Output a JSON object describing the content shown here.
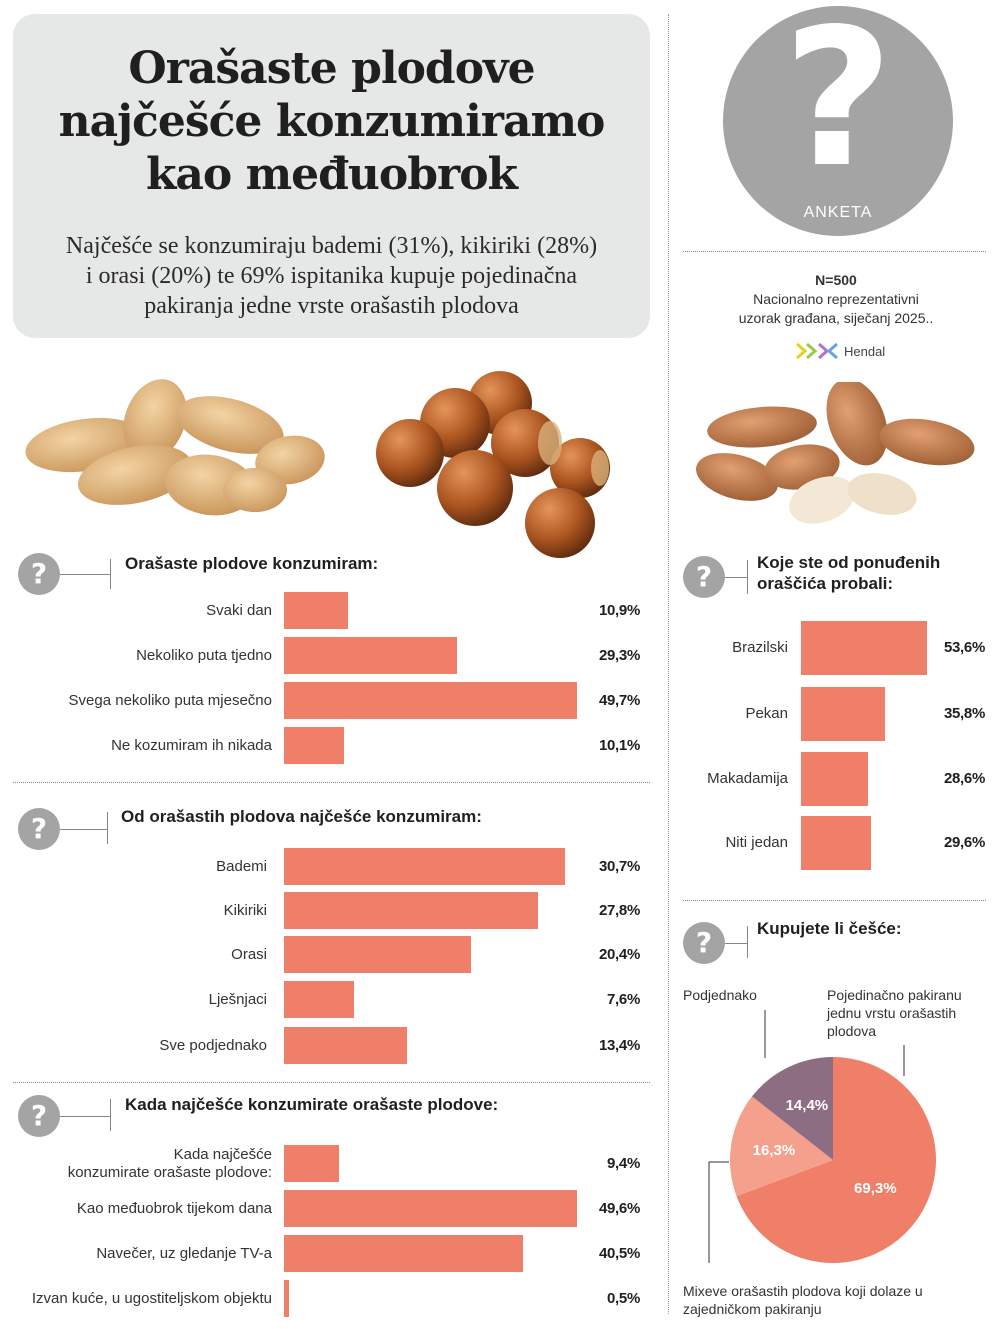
{
  "header": {
    "title_lines": [
      "Orašaste plodove",
      "najčešće  konzumiramo",
      "kao međuobrok"
    ],
    "subtitle_lines": [
      "Najčešće se konzumiraju bademi (31%), kikiriki (28%)",
      "i orasi (20%) te 69% ispitanika kupuje pojedinačna",
      "pakiranja jedne vrste orašastih plodova"
    ]
  },
  "badge": {
    "symbol": "?",
    "label": "ANKETA"
  },
  "survey": {
    "sample": "N=500",
    "description_lines": [
      "Nacionalno reprezentativni",
      "uzorak građana, siječanj 2025.."
    ],
    "source": "Hendal"
  },
  "icons": {
    "question": "question-mark-icon",
    "peanuts": "peanuts-photo",
    "hazelnuts": "hazelnuts-photo",
    "almonds": "almonds-photo",
    "logo": "hendal-logo-icon"
  },
  "colors": {
    "bar": "#f07f6a",
    "pie_main": "#f07f6a",
    "pie_light": "#f4a08d",
    "pie_purple": "#8c6d82",
    "badge": "#a4a4a4"
  },
  "chart_data": [
    {
      "id": "frequency",
      "type": "bar",
      "title": "Orašaste plodove konzumiram:",
      "categories": [
        "Svaki dan",
        "Nekoliko puta tjedno",
        "Svega nekoliko puta mjesečno",
        "Ne kozumiram ih nikada"
      ],
      "values": [
        10.9,
        29.3,
        49.7,
        10.1
      ],
      "value_labels": [
        "10,9%",
        "29,3%",
        "49,7%",
        "10,1%"
      ]
    },
    {
      "id": "most_consumed",
      "type": "bar",
      "title": "Od orašastih plodova najčešće konzumiram:",
      "categories": [
        "Bademi",
        "Kikiriki",
        "Orasi",
        "Lješnjaci",
        "Sve podjednako"
      ],
      "values": [
        30.7,
        27.8,
        20.4,
        7.6,
        13.4
      ],
      "value_labels": [
        "30,7%",
        "27,8%",
        "20,4%",
        "7,6%",
        "13,4%"
      ]
    },
    {
      "id": "occasion",
      "type": "bar",
      "title": "Kada najčešće konzumirate orašaste plodove:",
      "categories": [
        "Kada najčešće\nkonzumirate orašaste plodove:",
        "Kao međuobrok tijekom dana",
        "Navečer, uz gledanje TV-a",
        "Izvan kuće, u ugostiteljskom objektu"
      ],
      "values": [
        9.4,
        49.6,
        40.5,
        0.5
      ],
      "value_labels": [
        "9,4%",
        "49,6%",
        "40,5%",
        "0,5%"
      ]
    },
    {
      "id": "tried",
      "type": "bar",
      "title": "Koje ste od ponuđenih\noraščića probali:",
      "categories": [
        "Brazilski",
        "Pekan",
        "Makadamija",
        "Niti jedan"
      ],
      "values": [
        53.6,
        35.8,
        28.6,
        29.6
      ],
      "value_labels": [
        "53,6%",
        "35,8%",
        "28,6%",
        "29,6%"
      ]
    },
    {
      "id": "purchase",
      "type": "pie",
      "title": "Kupujete li češće:",
      "labels": [
        "Pojedinačno pakiranu jednu vrstu orašastih plodova",
        "Mixeve orašastih plodova koji dolaze u zajedničkom pakiranju",
        "Podjednako"
      ],
      "values": [
        69.3,
        16.3,
        14.4
      ],
      "value_labels": [
        "69,3%",
        "16,3%",
        "14,4%"
      ],
      "colors": [
        "#f07f6a",
        "#f4a08d",
        "#8c6d82"
      ]
    }
  ]
}
